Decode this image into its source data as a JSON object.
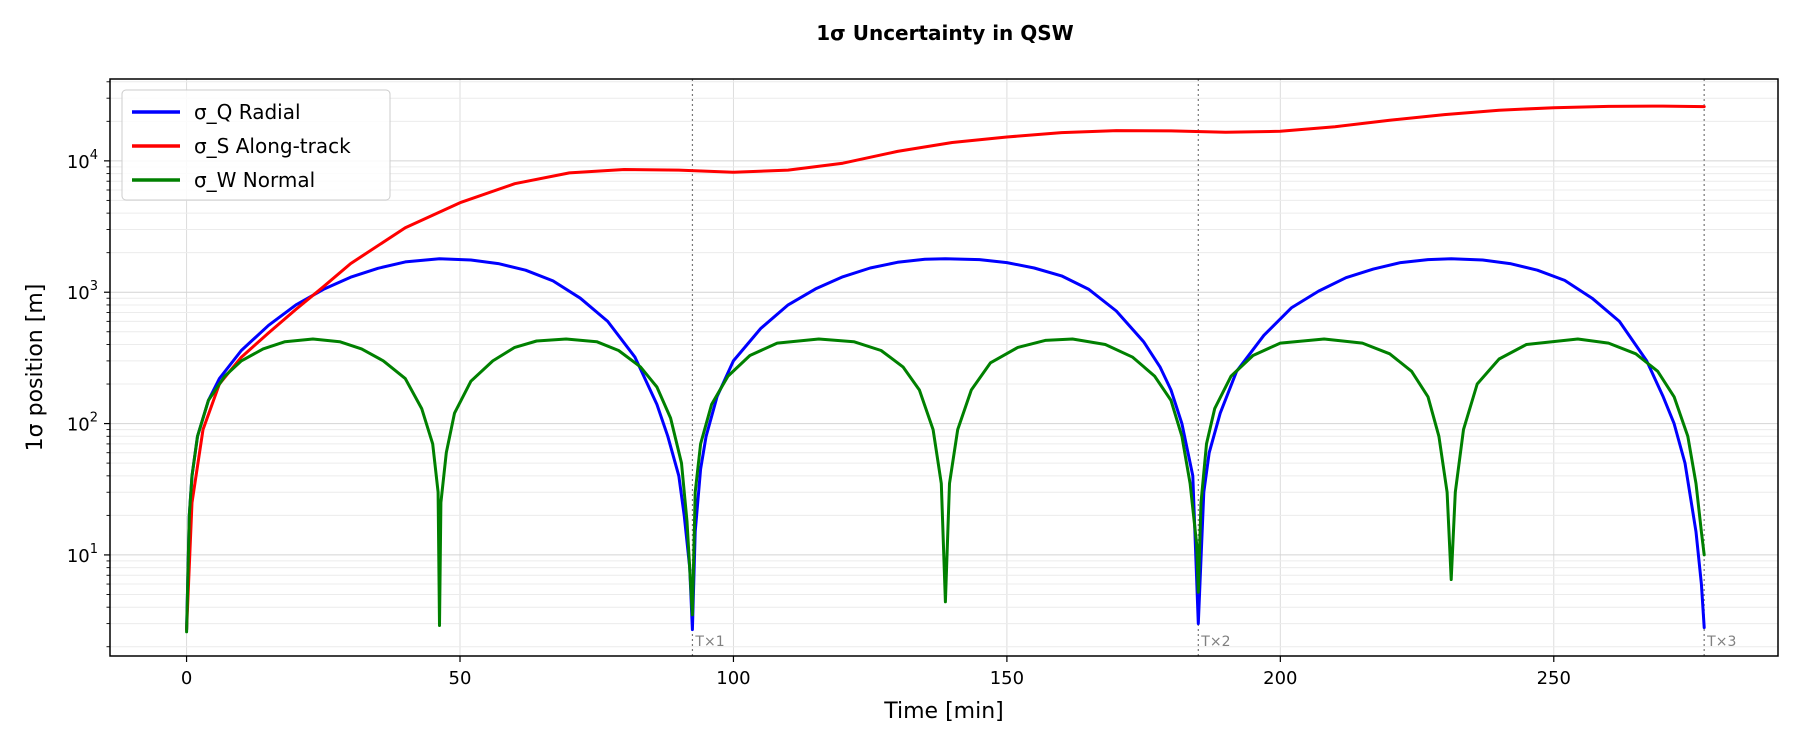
{
  "chart_data": {
    "type": "line",
    "title": "1σ Uncertainty in QSW",
    "xlabel": "Time [min]",
    "ylabel": "1σ position [m]",
    "xlim": [
      -14,
      291
    ],
    "ylim": [
      1.7,
      42000
    ],
    "yscale": "log",
    "grid": true,
    "legend_position": "top-left",
    "x_ticks": [
      0,
      50,
      100,
      150,
      200,
      250
    ],
    "y_ticks": [
      10,
      100,
      1000,
      10000
    ],
    "y_tick_labels": [
      {
        "base": "10",
        "exp": "1"
      },
      {
        "base": "10",
        "exp": "2"
      },
      {
        "base": "10",
        "exp": "3"
      },
      {
        "base": "10",
        "exp": "4"
      }
    ],
    "period_markers": [
      {
        "x": 92.5,
        "label": "T×1"
      },
      {
        "x": 185,
        "label": "T×2"
      },
      {
        "x": 277.5,
        "label": "T×3"
      }
    ],
    "series": [
      {
        "name": "σ_Q  Radial",
        "color": "#0000ff",
        "x": [
          0,
          0.5,
          1,
          2,
          4,
          6,
          10,
          15,
          20,
          25,
          30,
          35,
          40,
          46.25,
          52,
          57,
          62,
          67,
          72,
          77,
          82,
          86,
          88,
          90,
          91,
          92,
          92.5,
          93,
          94,
          95,
          97,
          100,
          105,
          110,
          115,
          120,
          125,
          130,
          135,
          138.75,
          145,
          150,
          155,
          160,
          165,
          170,
          175,
          178,
          180,
          182,
          184,
          185,
          186,
          187,
          189,
          192,
          197,
          202,
          207,
          212,
          217,
          222,
          227,
          231.25,
          237,
          242,
          247,
          252,
          257,
          262,
          267,
          270,
          272,
          274,
          276,
          277,
          277.5
        ],
        "values": [
          2.7,
          20,
          40,
          80,
          150,
          220,
          360,
          560,
          800,
          1050,
          1300,
          1520,
          1700,
          1800,
          1760,
          1650,
          1470,
          1220,
          900,
          600,
          320,
          140,
          80,
          40,
          20,
          8,
          2.7,
          15,
          45,
          80,
          160,
          300,
          530,
          800,
          1060,
          1310,
          1530,
          1690,
          1780,
          1800,
          1770,
          1680,
          1530,
          1330,
          1050,
          720,
          420,
          270,
          180,
          100,
          40,
          3.0,
          30,
          60,
          120,
          250,
          470,
          760,
          1020,
          1290,
          1500,
          1680,
          1770,
          1800,
          1760,
          1650,
          1470,
          1230,
          900,
          600,
          300,
          160,
          100,
          50,
          15,
          6,
          2.8
        ]
      },
      {
        "name": "σ_S  Along-track",
        "color": "#ff0000",
        "x": [
          0,
          1,
          3,
          6,
          10,
          15,
          20,
          25,
          30,
          40,
          50,
          60,
          70,
          80,
          90,
          100,
          110,
          120,
          130,
          140,
          150,
          160,
          170,
          180,
          190,
          200,
          210,
          220,
          230,
          240,
          250,
          260,
          270,
          277.5
        ],
        "values": [
          2.7,
          25,
          90,
          200,
          320,
          490,
          740,
          1100,
          1650,
          3100,
          4800,
          6700,
          8100,
          8600,
          8500,
          8200,
          8500,
          9600,
          11800,
          13800,
          15200,
          16400,
          17000,
          16900,
          16500,
          16800,
          18200,
          20400,
          22500,
          24300,
          25400,
          26000,
          26100,
          25900
        ]
      },
      {
        "name": "σ_W  Normal",
        "color": "#008000",
        "x": [
          0,
          0.5,
          1,
          2,
          4,
          7,
          10,
          14,
          18,
          23.1,
          28,
          32,
          36,
          40,
          43,
          45,
          46,
          46.25,
          46.5,
          47.5,
          49,
          52,
          56,
          60,
          64,
          69.4,
          75,
          79,
          83,
          86,
          88.5,
          90.5,
          91.5,
          92.5,
          93,
          94,
          96,
          99,
          103,
          108,
          115.6,
          122,
          127,
          131,
          134,
          136.5,
          138,
          138.75,
          139.5,
          141,
          143.5,
          147,
          152,
          157,
          162,
          168,
          173,
          177,
          180,
          182,
          183.5,
          184.7,
          185,
          185.5,
          186.5,
          188,
          191,
          195,
          200,
          208,
          215,
          220,
          224,
          227,
          229,
          230.5,
          231.25,
          232,
          233.5,
          236,
          240,
          245,
          254.4,
          260,
          265,
          269,
          272,
          274.5,
          276,
          277,
          277.5
        ],
        "values": [
          2.6,
          20,
          40,
          80,
          150,
          230,
          300,
          370,
          420,
          440,
          420,
          370,
          300,
          220,
          130,
          70,
          30,
          2.9,
          25,
          60,
          120,
          210,
          300,
          380,
          425,
          440,
          420,
          360,
          270,
          190,
          110,
          50,
          18,
          3.5,
          30,
          70,
          140,
          230,
          330,
          410,
          440,
          420,
          360,
          270,
          180,
          90,
          35,
          4.4,
          35,
          90,
          180,
          290,
          380,
          430,
          440,
          400,
          320,
          230,
          150,
          80,
          35,
          12,
          5.2,
          25,
          70,
          130,
          230,
          330,
          410,
          440,
          410,
          340,
          250,
          160,
          80,
          30,
          6.5,
          30,
          90,
          200,
          310,
          400,
          440,
          410,
          340,
          250,
          160,
          80,
          35,
          15,
          10
        ]
      }
    ]
  }
}
